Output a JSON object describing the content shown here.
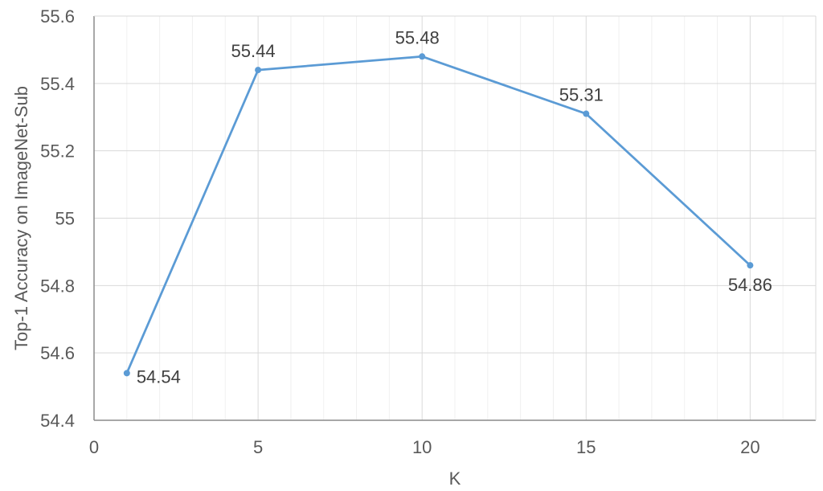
{
  "chart_data": {
    "type": "line",
    "title": "",
    "xlabel": "K",
    "ylabel": "Top-1 Accuracy on ImageNet-Sub",
    "xlim": [
      0,
      22
    ],
    "ylim": [
      54.4,
      55.6
    ],
    "xticks": [
      0,
      5,
      10,
      15,
      20
    ],
    "xtick_labels": [
      "0",
      "5",
      "10",
      "15",
      "20"
    ],
    "yticks": [
      54.4,
      54.6,
      54.8,
      55,
      55.2,
      55.4,
      55.6
    ],
    "ytick_labels": [
      "54.4",
      "54.6",
      "54.8",
      "55",
      "55.2",
      "55.4",
      "55.6"
    ],
    "x_minor_step": 1,
    "grid": true,
    "legend": "none",
    "series": [
      {
        "x": [
          1,
          5,
          10,
          15,
          20
        ],
        "y": [
          54.54,
          55.44,
          55.48,
          55.31,
          54.86
        ],
        "labels": [
          "54.54",
          "55.44",
          "55.48",
          "55.31",
          "54.86"
        ],
        "label_positions": [
          "right",
          "above",
          "above",
          "above",
          "below"
        ],
        "color": "#5b9bd5"
      }
    ],
    "colors": {
      "axis": "#8c8c8c",
      "major_grid": "#d9d9d9",
      "minor_grid": "#f0f0f0"
    }
  }
}
